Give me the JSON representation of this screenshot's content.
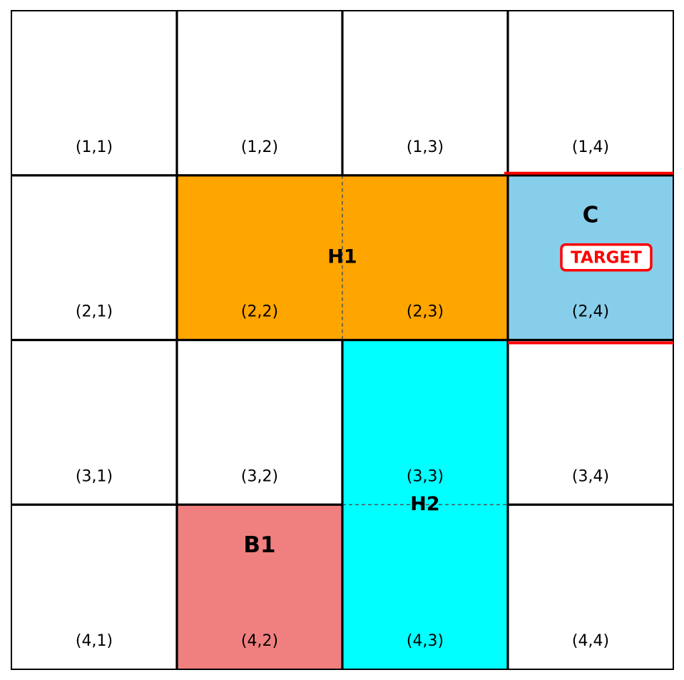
{
  "board": {
    "rows": 4,
    "cols": 4,
    "cell_labels": [
      [
        "(1,1)",
        "(1,2)",
        "(1,3)",
        "(1,4)"
      ],
      [
        "(2,1)",
        "(2,2)",
        "(2,3)",
        "(2,4)"
      ],
      [
        "(3,1)",
        "(3,2)",
        "(3,3)",
        "(3,4)"
      ],
      [
        "(4,1)",
        "(4,2)",
        "(4,3)",
        "(4,4)"
      ]
    ]
  },
  "pieces": [
    {
      "id": "H1",
      "label": "H1",
      "color": "#FFA500",
      "row": 2,
      "col": 2,
      "row_span": 1,
      "col_span": 2,
      "orientation": "horizontal"
    },
    {
      "id": "C",
      "label": "C",
      "color": "#87CEEB",
      "row": 2,
      "col": 4,
      "row_span": 1,
      "col_span": 1,
      "target": true
    },
    {
      "id": "H2",
      "label": "H2",
      "color": "#00FFFF",
      "row": 3,
      "col": 3,
      "row_span": 2,
      "col_span": 1,
      "orientation": "vertical"
    },
    {
      "id": "B1",
      "label": "B1",
      "color": "#F08080",
      "row": 4,
      "col": 2,
      "row_span": 1,
      "col_span": 1
    }
  ],
  "target": {
    "label": "TARGET",
    "color": "#FF0000"
  }
}
